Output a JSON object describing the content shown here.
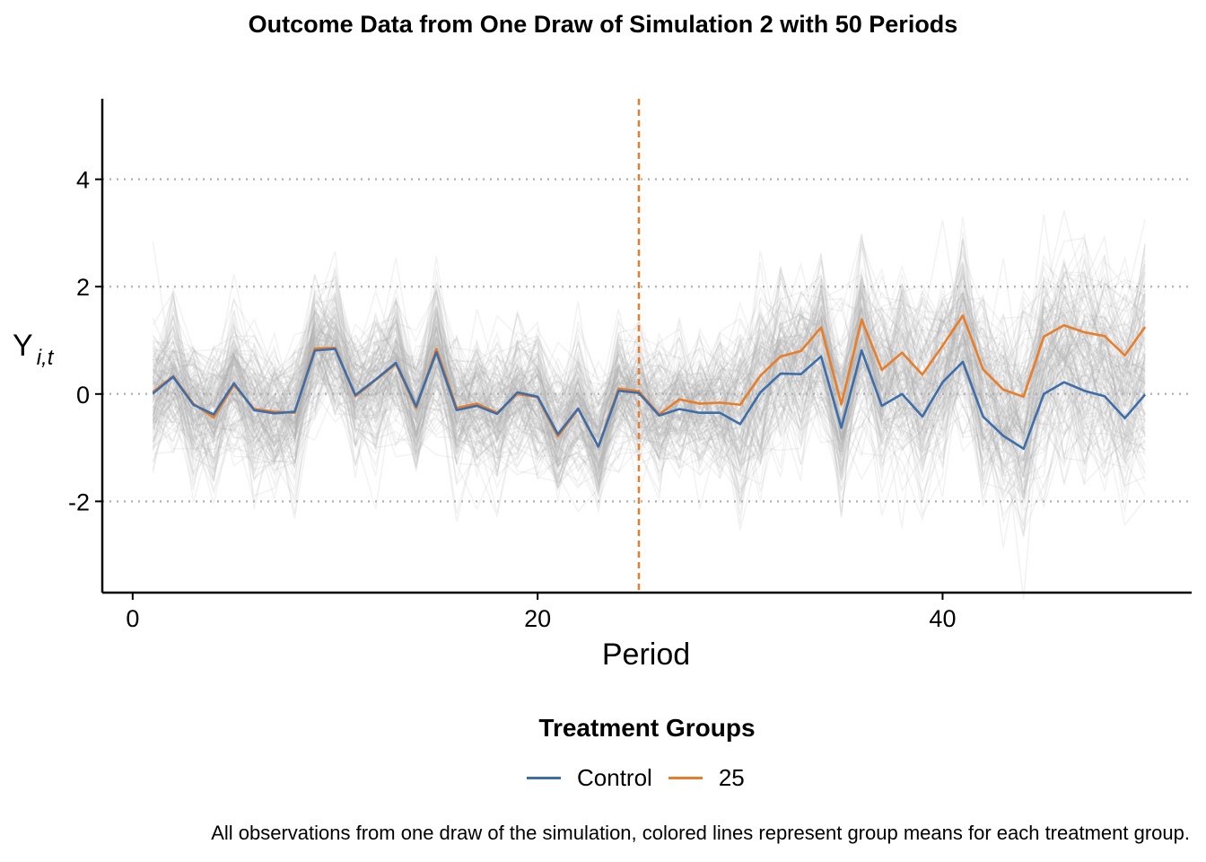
{
  "chart_data": {
    "type": "line",
    "title": "Outcome Data from One Draw of Simulation 2 with 50 Periods",
    "xlabel": "Period",
    "ylabel_main": "Y",
    "ylabel_sub": "i,t",
    "xlim": [
      -1.5,
      52.3
    ],
    "ylim": [
      -3.7,
      5.5
    ],
    "xticks": [
      0,
      20,
      40
    ],
    "yticks": [
      -2,
      0,
      2,
      4
    ],
    "ytick_labels": [
      "-2",
      "0",
      "2",
      "4"
    ],
    "grid": "horizontal dotted",
    "treatment_start": 25,
    "legend_title": "Treatment Groups",
    "legend_position": "bottom",
    "x": [
      1,
      2,
      3,
      4,
      5,
      6,
      7,
      8,
      9,
      10,
      11,
      12,
      13,
      14,
      15,
      16,
      17,
      18,
      19,
      20,
      21,
      22,
      23,
      24,
      25,
      26,
      27,
      28,
      29,
      30,
      31,
      32,
      33,
      34,
      35,
      36,
      37,
      38,
      39,
      40,
      41,
      42,
      43,
      44,
      45,
      46,
      47,
      48,
      49,
      50
    ],
    "series": [
      {
        "name": "Control",
        "color": "#3D6EAA",
        "values": [
          0.01,
          0.32,
          -0.2,
          -0.38,
          0.2,
          -0.3,
          -0.36,
          -0.33,
          0.81,
          0.84,
          -0.02,
          0.27,
          0.58,
          -0.23,
          0.78,
          -0.3,
          -0.22,
          -0.37,
          0.03,
          -0.05,
          -0.75,
          -0.27,
          -0.98,
          0.06,
          0.02,
          -0.4,
          -0.28,
          -0.35,
          -0.35,
          -0.56,
          0.03,
          0.38,
          0.37,
          0.7,
          -0.63,
          0.81,
          -0.22,
          0.0,
          -0.42,
          0.22,
          0.6,
          -0.42,
          -0.78,
          -1.02,
          0.0,
          0.22,
          0.06,
          -0.04,
          -0.45,
          -0.01
        ]
      },
      {
        "name": "25",
        "color": "#E87D2A",
        "values": [
          0.04,
          0.33,
          -0.18,
          -0.44,
          0.17,
          -0.28,
          -0.33,
          -0.35,
          0.85,
          0.86,
          -0.04,
          0.26,
          0.56,
          -0.26,
          0.84,
          -0.26,
          -0.18,
          -0.35,
          0.0,
          -0.06,
          -0.79,
          -0.28,
          -0.98,
          0.1,
          0.05,
          -0.38,
          -0.1,
          -0.18,
          -0.16,
          -0.2,
          0.34,
          0.7,
          0.8,
          1.24,
          -0.19,
          1.39,
          0.45,
          0.77,
          0.36,
          0.9,
          1.46,
          0.46,
          0.08,
          -0.05,
          1.07,
          1.28,
          1.15,
          1.08,
          0.72,
          1.25
        ]
      }
    ],
    "background_lines_color": "#b0b0b0",
    "caption": "All observations from one draw of the simulation, colored lines represent group means for each treatment group."
  }
}
